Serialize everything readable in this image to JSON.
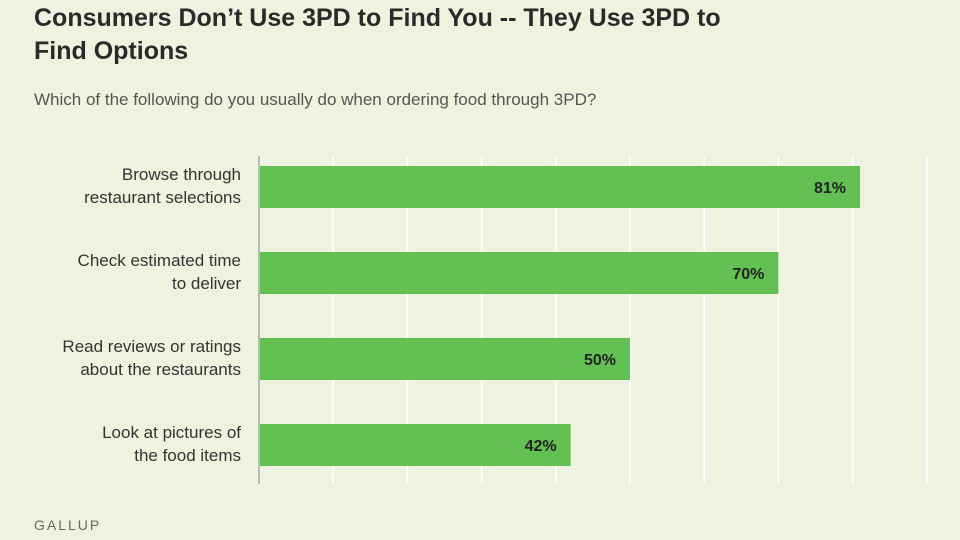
{
  "title": "Consumers Don’t Use 3PD to Find You -- They Use 3PD to Find Options",
  "subtitle": "Which of the following do you usually do when ordering food through 3PD?",
  "footer": "GALLUP",
  "colors": {
    "bar": "#62c152",
    "grid": "#ffffff",
    "axis": "#b8bdb0",
    "label": "#222222"
  },
  "chart_data": {
    "type": "bar",
    "orientation": "horizontal",
    "title": "Consumers Don’t Use 3PD to Find You -- They Use 3PD to Find Options",
    "subtitle": "Which of the following do you usually do when ordering food through 3PD?",
    "categories": [
      [
        "Browse through",
        "restaurant selections"
      ],
      [
        "Check estimated time",
        "to deliver"
      ],
      [
        "Read reviews or ratings",
        "about the restaurants"
      ],
      [
        "Look at pictures of",
        "the food items"
      ]
    ],
    "values": [
      81,
      70,
      50,
      42
    ],
    "data_labels": [
      "81%",
      "70%",
      "50%",
      "42%"
    ],
    "xlim": [
      0,
      90
    ],
    "grid": true
  }
}
